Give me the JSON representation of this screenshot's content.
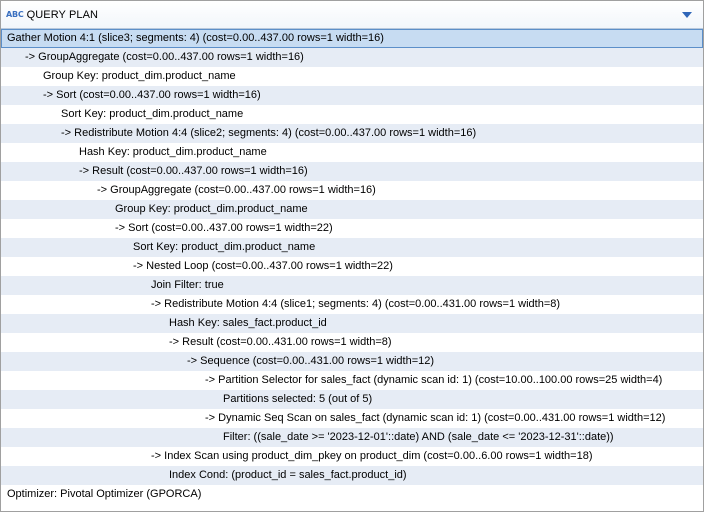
{
  "header": {
    "type_icon": "ABC",
    "title": "QUERY PLAN",
    "dropdown_icon": "chevron-down-icon"
  },
  "selected_row": 0,
  "colors": {
    "selection": "#c7dcf2",
    "stripe": "#e6ecf5",
    "accent": "#2f66b8"
  },
  "rows": [
    {
      "text": "Gather Motion 4:1  (slice3; segments: 4)  (cost=0.00..437.00 rows=1 width=16)",
      "indent": 0
    },
    {
      "text": "->  GroupAggregate  (cost=0.00..437.00 rows=1 width=16)",
      "indent": 1
    },
    {
      "text": "Group Key: product_dim.product_name",
      "indent": 2
    },
    {
      "text": "->  Sort  (cost=0.00..437.00 rows=1 width=16)",
      "indent": 2
    },
    {
      "text": "Sort Key: product_dim.product_name",
      "indent": 3
    },
    {
      "text": "->  Redistribute Motion 4:4  (slice2; segments: 4)  (cost=0.00..437.00 rows=1 width=16)",
      "indent": 3
    },
    {
      "text": "Hash Key: product_dim.product_name",
      "indent": 4
    },
    {
      "text": "->  Result  (cost=0.00..437.00 rows=1 width=16)",
      "indent": 4
    },
    {
      "text": "->  GroupAggregate  (cost=0.00..437.00 rows=1 width=16)",
      "indent": 5
    },
    {
      "text": "Group Key: product_dim.product_name",
      "indent": 6
    },
    {
      "text": "->  Sort  (cost=0.00..437.00 rows=1 width=22)",
      "indent": 6
    },
    {
      "text": "Sort Key: product_dim.product_name",
      "indent": 7
    },
    {
      "text": "->  Nested Loop  (cost=0.00..437.00 rows=1 width=22)",
      "indent": 7
    },
    {
      "text": "Join Filter: true",
      "indent": 8
    },
    {
      "text": "->  Redistribute Motion 4:4  (slice1; segments: 4)  (cost=0.00..431.00 rows=1 width=8)",
      "indent": 8
    },
    {
      "text": "Hash Key: sales_fact.product_id",
      "indent": 9
    },
    {
      "text": "->  Result  (cost=0.00..431.00 rows=1 width=8)",
      "indent": 9
    },
    {
      "text": "->  Sequence  (cost=0.00..431.00 rows=1 width=12)",
      "indent": 10
    },
    {
      "text": "->  Partition Selector for sales_fact (dynamic scan id: 1)  (cost=10.00..100.00 rows=25 width=4)",
      "indent": 11
    },
    {
      "text": "Partitions selected: 5 (out of 5)",
      "indent": 12
    },
    {
      "text": "->  Dynamic Seq Scan on sales_fact (dynamic scan id: 1)  (cost=0.00..431.00 rows=1 width=12)",
      "indent": 11
    },
    {
      "text": "Filter: ((sale_date >= '2023-12-01'::date) AND (sale_date <= '2023-12-31'::date))",
      "indent": 12
    },
    {
      "text": "->  Index Scan using product_dim_pkey on product_dim  (cost=0.00..6.00 rows=1 width=18)",
      "indent": 8
    },
    {
      "text": "Index Cond: (product_id = sales_fact.product_id)",
      "indent": 9
    },
    {
      "text": "Optimizer: Pivotal Optimizer (GPORCA)",
      "indent": 0
    }
  ]
}
